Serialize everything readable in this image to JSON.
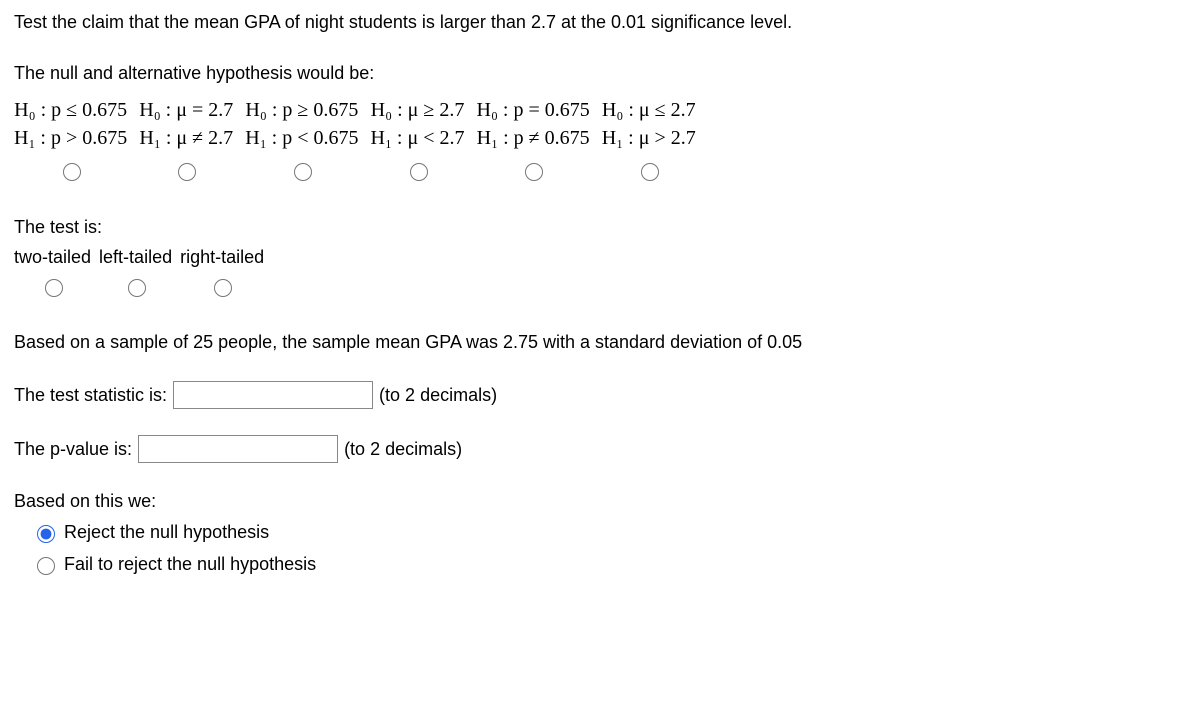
{
  "intro": "Test the claim that the mean GPA of night students is larger than 2.7 at the 0.01 significance level.",
  "hyp_prompt": "The null and alternative hypothesis would be:",
  "hypotheses": [
    {
      "h0": "H₀ : p ≤ 0.675",
      "h1": "H₁ : p > 0.675"
    },
    {
      "h0": "H₀ : μ = 2.7",
      "h1": "H₁ : μ ≠ 2.7"
    },
    {
      "h0": "H₀ : p ≥ 0.675",
      "h1": "H₁ : p < 0.675"
    },
    {
      "h0": "H₀ : μ ≥ 2.7",
      "h1": "H₁ : μ < 2.7"
    },
    {
      "h0": "H₀ : p = 0.675",
      "h1": "H₁ : p ≠ 0.675"
    },
    {
      "h0": "H₀ : μ ≤ 2.7",
      "h1": "H₁ : μ > 2.7"
    }
  ],
  "test_is": "The test is:",
  "tails": [
    "two-tailed",
    "left-tailed",
    "right-tailed"
  ],
  "sample_text": "Based on a sample of 25 people, the sample mean GPA was 2.75 with a standard deviation of 0.05",
  "stat_label": "The test statistic is:",
  "pval_label": "The p-value is:",
  "decimals_hint": "(to 2 decimals)",
  "based_on": "Based on this we:",
  "decisions": {
    "reject": "Reject the null hypothesis",
    "fail": "Fail to reject the null hypothesis"
  },
  "decision_selected": "reject",
  "inputs": {
    "test_statistic": "",
    "p_value": ""
  }
}
